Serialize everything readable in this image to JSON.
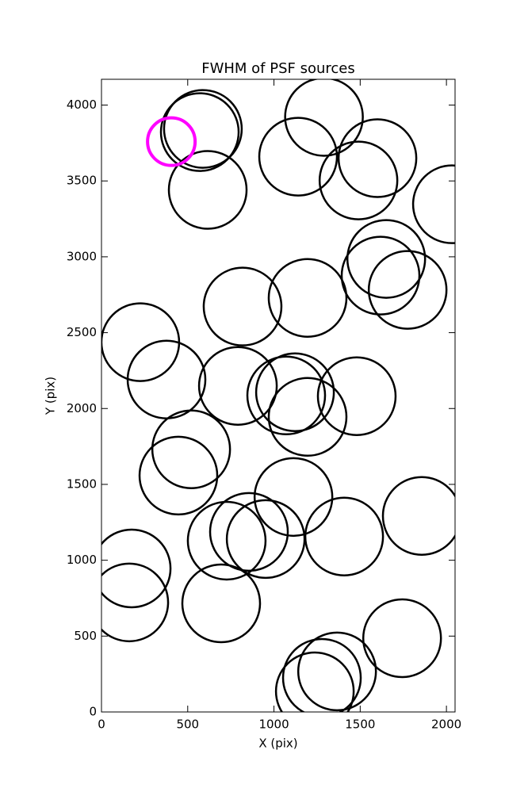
{
  "chart_data": {
    "type": "scatter",
    "title": "FWHM of PSF sources",
    "x_label": "X (pix)",
    "y_label": "Y (pix)",
    "xlim": [
      0,
      2050
    ],
    "ylim": [
      0,
      4170
    ],
    "xticks": [
      0,
      500,
      1000,
      1500,
      2000
    ],
    "yticks": [
      0,
      500,
      1000,
      1500,
      2000,
      2500,
      3000,
      3500,
      4000
    ],
    "grid": false,
    "series": [
      {
        "color": "#000000",
        "x": [
          570,
          588,
          616,
          1290,
          1140,
          1600,
          1490,
          2032,
          1651,
          1618,
          1775,
          818,
          1195,
          225,
          377,
          791,
          1071,
          1122,
          1195,
          1480,
          520,
          446,
          1113,
          1857,
          1407,
          855,
          952,
          726,
          175,
          161,
          694,
          1743,
          1366,
          1278,
          1237
        ],
        "values": [
          3822,
          3843,
          3441,
          3922,
          3660,
          3650,
          3503,
          3346,
          2986,
          2876,
          2782,
          2672,
          2729,
          2437,
          2191,
          2149,
          2086,
          2107,
          1945,
          2081,
          1731,
          1558,
          1417,
          1292,
          1156,
          1187,
          1140,
          1129,
          946,
          722,
          716,
          486,
          267,
          225,
          136
        ]
      },
      {
        "color": "#ff00ff",
        "x": [
          405
        ],
        "values": [
          3759
        ]
      }
    ]
  }
}
